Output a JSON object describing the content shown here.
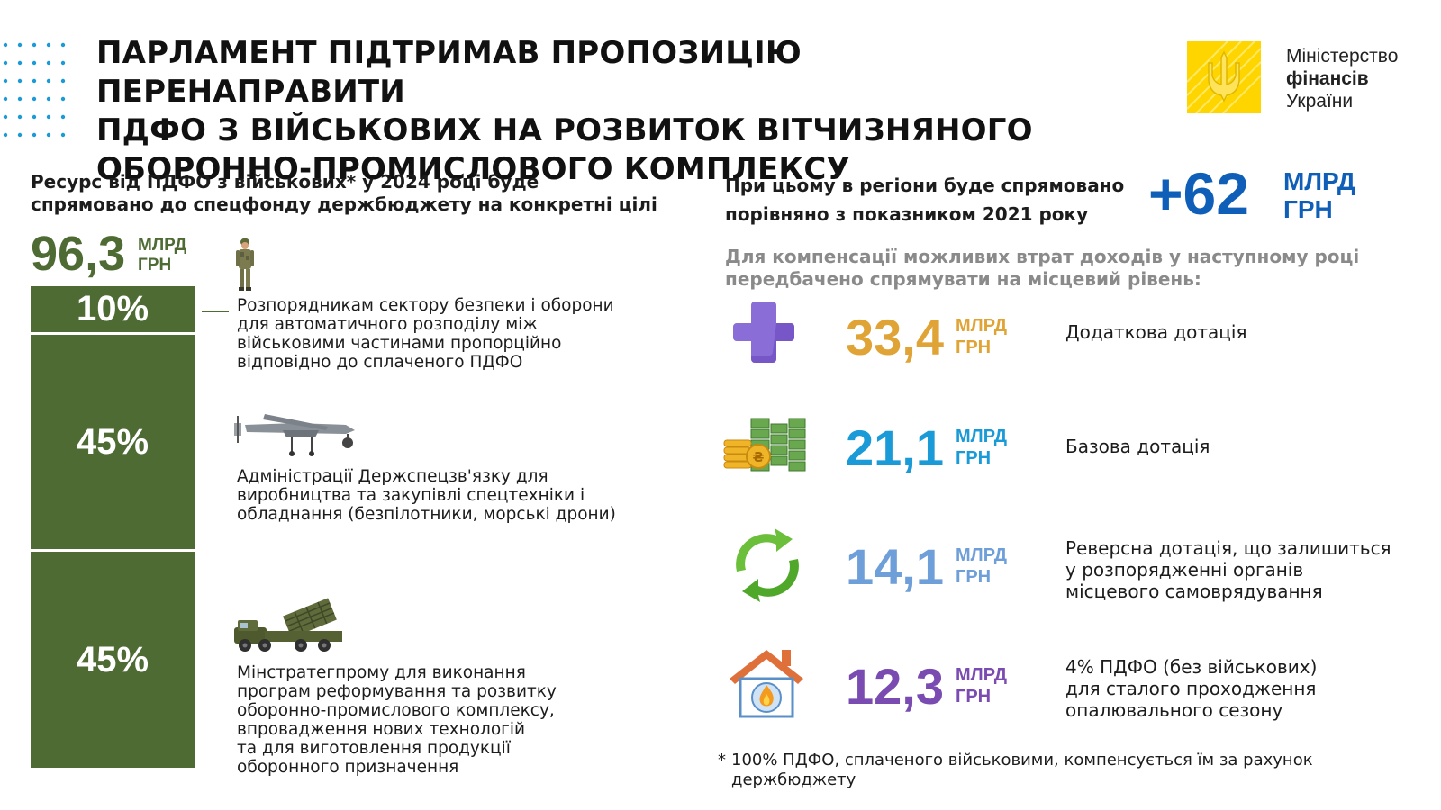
{
  "header": {
    "title_line1": "ПАРЛАМЕНТ ПІДТРИМАВ ПРОПОЗИЦІЮ ПЕРЕНАПРАВИТИ",
    "title_line2": "ПДФО З ВІЙСЬКОВИХ НА РОЗВИТОК ВІТЧИЗНЯНОГО",
    "title_line3": "ОБОРОННО-ПРОМИСЛОВОГО КОМПЛЕКСУ",
    "logo_line1": "Міністерство",
    "logo_line2": "фінансів",
    "logo_line3": "України",
    "logo_color": "#ffd500"
  },
  "left": {
    "subhead_line1": "Ресурс від ПДФО з військових* у 2024 році буде",
    "subhead_line2": "спрямовано до спецфонду держбюджету на конкретні цілі",
    "total_value": "96,3",
    "total_unit_line1": "МЛРД",
    "total_unit_line2": "ГРН",
    "accent_color": "#4d6b33",
    "allocations": [
      {
        "percent": "10%",
        "share": 0.1,
        "icon": "soldier-icon",
        "text_lines": [
          "Розпорядникам сектору безпеки і оборони",
          "для автоматичного розподілу між",
          "військовими частинами пропорційно",
          "відповідно до сплаченого ПДФО"
        ]
      },
      {
        "percent": "45%",
        "share": 0.45,
        "icon": "drone-icon",
        "text_lines": [
          "Адміністрації Держспецзв'язку для",
          "виробництва та закупівлі спецтехніки і",
          "обладнання (безпілотники, морські дрони)"
        ]
      },
      {
        "percent": "45%",
        "share": 0.45,
        "icon": "rocket-launcher-truck-icon",
        "text_lines": [
          "Мінстратегпрому для виконання",
          "програм реформування та розвитку",
          "оборонно-промислового комплексу,",
          "впровадження нових технологій",
          "та для виготовлення продукції",
          "оборонного призначення"
        ]
      }
    ]
  },
  "right": {
    "subhead_line1": "При цьому в регіони буде спрямовано",
    "subhead_line2": "порівняно з показником 2021 року",
    "headline_value": "+62",
    "headline_unit_line1": "МЛРД",
    "headline_unit_line2": "ГРН",
    "headline_color": "#0f5fb8",
    "comp_line1": "Для компенсації можливих втрат доходів у наступному році",
    "comp_line2": "передбачено спрямувати на місцевий рівень:",
    "items": [
      {
        "icon": "plus-icon",
        "value": "33,4",
        "unit_line1": "МЛРД",
        "unit_line2": "ГРН",
        "color": "#e0a336",
        "desc_lines": [
          "Додаткова дотація"
        ]
      },
      {
        "icon": "money-stack-icon",
        "value": "21,1",
        "unit_line1": "МЛРД",
        "unit_line2": "ГРН",
        "color": "#1a9ad6",
        "desc_lines": [
          "Базова дотація"
        ]
      },
      {
        "icon": "recycle-arrows-icon",
        "value": "14,1",
        "unit_line1": "МЛРД",
        "unit_line2": "ГРН",
        "color": "#6f9fd8",
        "desc_lines": [
          "Реверсна дотація, що залишиться",
          "у розпорядженні органів",
          "місцевого самоврядування"
        ]
      },
      {
        "icon": "house-heating-icon",
        "value": "12,3",
        "unit_line1": "МЛРД",
        "unit_line2": "ГРН",
        "color": "#7a4bb0",
        "desc_lines": [
          "4% ПДФО (без військових)",
          "для сталого проходження",
          "опалювального сезону"
        ]
      }
    ]
  },
  "footnote": {
    "star": "*",
    "line1": "100% ПДФО, сплаченого військовими, компенсується їм за рахунок",
    "line2": "держбюджету"
  }
}
